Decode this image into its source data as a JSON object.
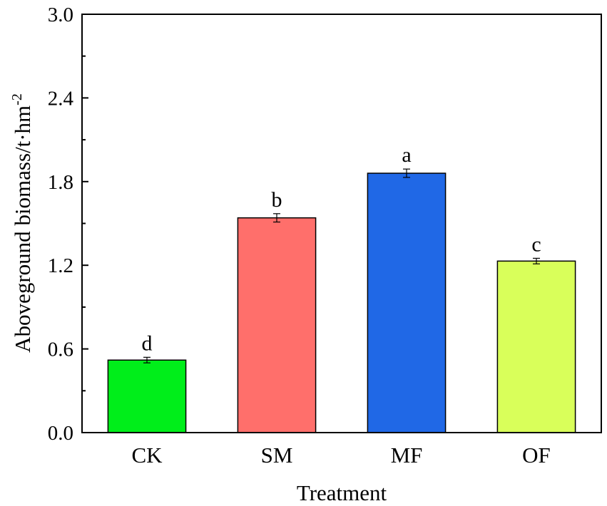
{
  "chart_data": {
    "type": "bar",
    "title": "",
    "xlabel": "Treatment",
    "ylabel": "Aboveground biomass/t·hm",
    "ylabel_superscript": "-2",
    "categories": [
      "CK",
      "SM",
      "MF",
      "OF"
    ],
    "values": [
      0.52,
      1.54,
      1.86,
      1.23
    ],
    "errors": [
      0.02,
      0.03,
      0.03,
      0.02
    ],
    "significance": [
      "d",
      "b",
      "a",
      "c"
    ],
    "colors": [
      "#00ee1a",
      "#ff6f6b",
      "#2068e6",
      "#d9ff5a"
    ],
    "ylim": [
      0,
      3.0
    ],
    "yticks": [
      "0.0",
      "0.6",
      "1.2",
      "1.8",
      "2.4",
      "3.0"
    ],
    "grid": false,
    "legend": "none"
  }
}
